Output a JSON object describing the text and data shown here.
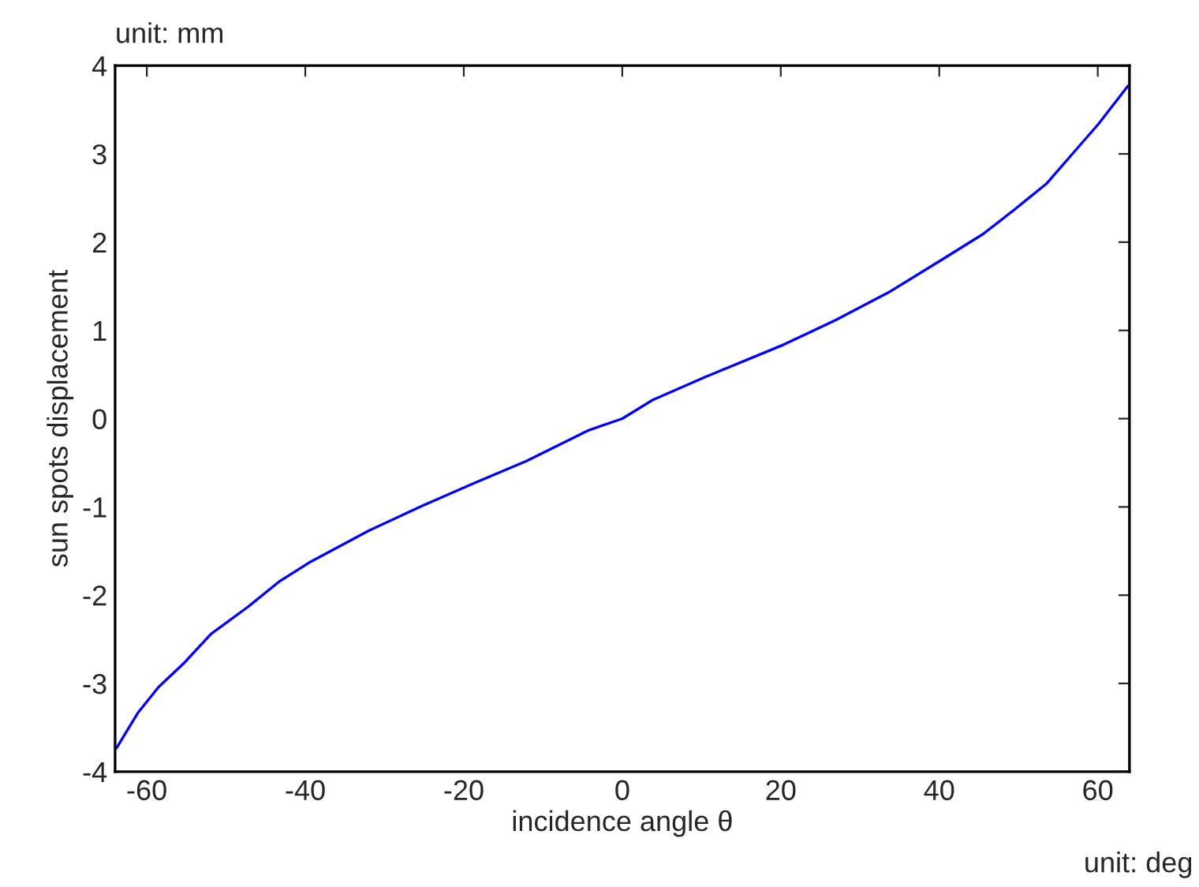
{
  "chart_data": {
    "type": "line",
    "xlabel": "incidence angle θ",
    "ylabel": "sun spots displacement",
    "annotations": [
      "unit: mm",
      "unit: deg"
    ],
    "series": [
      {
        "color": "#0000ff",
        "x": [
          -63.8,
          -61.1,
          -58.5,
          -55.2,
          -51.9,
          -47.2,
          -43.2,
          -39.3,
          -32.0,
          -25.3,
          -18.7,
          -12.1,
          -4.2,
          0,
          3.8,
          10.4,
          20.4,
          27.0,
          33.6,
          40.3,
          45.5,
          49.5,
          53.5,
          56.8,
          60.1,
          63.8
        ],
        "values": [
          -3.73,
          -3.33,
          -3.04,
          -2.76,
          -2.44,
          -2.13,
          -1.84,
          -1.62,
          -1.27,
          -0.99,
          -0.73,
          -0.48,
          -0.13,
          0.0,
          0.21,
          0.47,
          0.84,
          1.12,
          1.43,
          1.8,
          2.09,
          2.37,
          2.66,
          3.0,
          3.34,
          3.77
        ]
      }
    ],
    "xlim": [
      -64,
      64
    ],
    "xticks": [
      -60,
      -40,
      -20,
      0,
      20,
      40,
      60
    ],
    "ylim": [
      -4,
      4
    ],
    "yticks": [
      -4,
      -3,
      -2,
      -1,
      0,
      1,
      2,
      3,
      4
    ],
    "grid": false,
    "legend": false,
    "marker": "none",
    "line_style": "solid"
  }
}
